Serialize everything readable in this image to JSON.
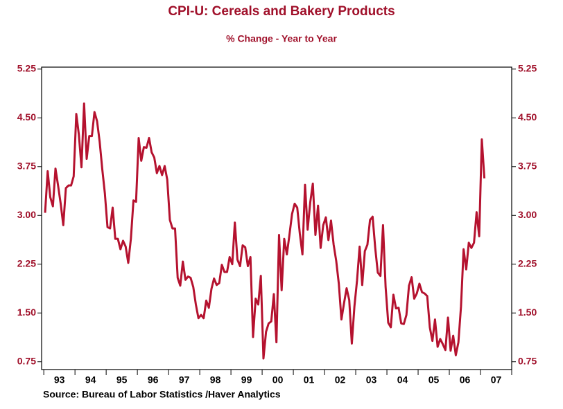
{
  "chart_data": {
    "type": "line",
    "title": "CPI-U: Cereals and Bakery Products",
    "subtitle": "% Change - Year to Year",
    "source": "Source:  Bureau of Labor Statistics /Haver Analytics",
    "xlim": [
      1992.93,
      2008.0
    ],
    "xticks": [
      {
        "value": 1993.5,
        "label": "93"
      },
      {
        "value": 1994.5,
        "label": "94"
      },
      {
        "value": 1995.5,
        "label": "95"
      },
      {
        "value": 1996.5,
        "label": "96"
      },
      {
        "value": 1997.5,
        "label": "97"
      },
      {
        "value": 1998.5,
        "label": "98"
      },
      {
        "value": 1999.5,
        "label": "99"
      },
      {
        "value": 2000.5,
        "label": "00"
      },
      {
        "value": 2001.5,
        "label": "01"
      },
      {
        "value": 2002.5,
        "label": "02"
      },
      {
        "value": 2003.5,
        "label": "03"
      },
      {
        "value": 2004.5,
        "label": "04"
      },
      {
        "value": 2005.5,
        "label": "05"
      },
      {
        "value": 2006.5,
        "label": "06"
      },
      {
        "value": 2007.5,
        "label": "07"
      }
    ],
    "xminorticks": [
      1993,
      1994,
      1995,
      1996,
      1997,
      1998,
      1999,
      2000,
      2001,
      2002,
      2003,
      2004,
      2005,
      2006,
      2007,
      2008
    ],
    "ylim": [
      0.63,
      5.28
    ],
    "yticks": [
      5.25,
      {
        "value": 4.5,
        "label": "4.50"
      },
      3.75,
      {
        "value": 3.0,
        "label": "3.00"
      },
      2.25,
      {
        "value": 1.5,
        "label": "1.50"
      },
      0.75
    ],
    "y2lim": [
      0.63,
      5.28
    ],
    "y2ticks": [
      5.25,
      {
        "value": 4.5,
        "label": "4.50"
      },
      3.75,
      {
        "value": 3.0,
        "label": "3.00"
      },
      2.25,
      {
        "value": 1.5,
        "label": "1.50"
      },
      0.75
    ],
    "series": [
      {
        "color": "#b5122f",
        "x": [
          1993.042,
          1993.125,
          1993.208,
          1993.292,
          1993.375,
          1993.458,
          1993.542,
          1993.625,
          1993.708,
          1993.792,
          1993.875,
          1993.958,
          1994.042,
          1994.125,
          1994.208,
          1994.292,
          1994.375,
          1994.458,
          1994.542,
          1994.625,
          1994.708,
          1994.792,
          1994.875,
          1994.958,
          1995.042,
          1995.125,
          1995.208,
          1995.292,
          1995.375,
          1995.458,
          1995.542,
          1995.625,
          1995.708,
          1995.792,
          1995.875,
          1995.958,
          1996.042,
          1996.125,
          1996.208,
          1996.292,
          1996.375,
          1996.458,
          1996.542,
          1996.625,
          1996.708,
          1996.792,
          1996.875,
          1996.958,
          1997.042,
          1997.125,
          1997.208,
          1997.292,
          1997.375,
          1997.458,
          1997.542,
          1997.625,
          1997.708,
          1997.792,
          1997.875,
          1997.958,
          1998.042,
          1998.125,
          1998.208,
          1998.292,
          1998.375,
          1998.458,
          1998.542,
          1998.625,
          1998.708,
          1998.792,
          1998.875,
          1998.958,
          1999.042,
          1999.125,
          1999.208,
          1999.292,
          1999.375,
          1999.458,
          1999.542,
          1999.625,
          1999.708,
          1999.792,
          1999.875,
          1999.958,
          2000.042,
          2000.125,
          2000.208,
          2000.292,
          2000.375,
          2000.458,
          2000.542,
          2000.625,
          2000.708,
          2000.792,
          2000.875,
          2000.958,
          2001.042,
          2001.125,
          2001.208,
          2001.292,
          2001.375,
          2001.458,
          2001.542,
          2001.625,
          2001.708,
          2001.792,
          2001.875,
          2001.958,
          2002.042,
          2002.125,
          2002.208,
          2002.292,
          2002.375,
          2002.458,
          2002.542,
          2002.625,
          2002.708,
          2002.792,
          2002.875,
          2002.958,
          2003.042,
          2003.125,
          2003.208,
          2003.292,
          2003.375,
          2003.458,
          2003.542,
          2003.625,
          2003.708,
          2003.792,
          2003.875,
          2003.958,
          2004.042,
          2004.125,
          2004.208,
          2004.292,
          2004.375,
          2004.458,
          2004.542,
          2004.625,
          2004.708,
          2004.792,
          2004.875,
          2004.958,
          2005.042,
          2005.125,
          2005.208,
          2005.292,
          2005.375,
          2005.458,
          2005.542,
          2005.625,
          2005.708,
          2005.792,
          2005.875,
          2005.958,
          2006.042,
          2006.125,
          2006.208,
          2006.292,
          2006.375,
          2006.458,
          2006.542,
          2006.625,
          2006.708,
          2006.792,
          2006.875,
          2006.958,
          2007.042,
          2007.125
        ],
        "values": [
          3.04,
          3.68,
          3.28,
          3.14,
          3.72,
          3.46,
          3.18,
          2.85,
          3.42,
          3.46,
          3.46,
          3.6,
          4.56,
          4.24,
          3.74,
          4.72,
          3.87,
          4.22,
          4.22,
          4.59,
          4.45,
          4.13,
          3.71,
          3.34,
          2.82,
          2.8,
          3.12,
          2.64,
          2.64,
          2.48,
          2.61,
          2.52,
          2.27,
          2.64,
          3.23,
          3.21,
          4.19,
          3.84,
          4.05,
          4.04,
          4.19,
          3.97,
          3.89,
          3.65,
          3.76,
          3.62,
          3.76,
          3.55,
          2.93,
          2.8,
          2.8,
          2.04,
          1.92,
          2.29,
          2.01,
          2.06,
          2.04,
          1.9,
          1.63,
          1.42,
          1.47,
          1.42,
          1.69,
          1.58,
          1.87,
          2.03,
          1.93,
          1.96,
          2.24,
          2.13,
          2.13,
          2.36,
          2.25,
          2.89,
          2.32,
          2.22,
          2.54,
          2.51,
          2.22,
          2.36,
          1.13,
          1.72,
          1.63,
          2.07,
          0.8,
          1.21,
          1.34,
          1.37,
          1.79,
          1.05,
          2.7,
          1.85,
          2.64,
          2.4,
          2.7,
          3.02,
          3.18,
          3.12,
          2.72,
          2.4,
          3.47,
          2.78,
          3.2,
          3.49,
          2.7,
          3.15,
          2.5,
          2.85,
          2.97,
          2.62,
          2.92,
          2.55,
          2.3,
          1.95,
          1.4,
          1.65,
          1.88,
          1.7,
          1.03,
          1.6,
          2.0,
          2.52,
          1.93,
          2.45,
          2.55,
          2.93,
          2.98,
          2.5,
          2.12,
          2.07,
          2.85,
          1.9,
          1.35,
          1.28,
          1.78,
          1.57,
          1.58,
          1.34,
          1.33,
          1.47,
          1.92,
          2.05,
          1.72,
          1.8,
          1.95,
          1.82,
          1.8,
          1.76,
          1.28,
          1.07,
          1.4,
          0.98,
          1.1,
          1.02,
          0.93,
          1.43,
          0.92,
          1.15,
          0.85,
          1.05,
          1.6,
          2.48,
          2.17,
          2.58,
          2.5,
          2.58,
          3.05,
          2.68,
          4.17,
          3.57
        ]
      }
    ]
  }
}
